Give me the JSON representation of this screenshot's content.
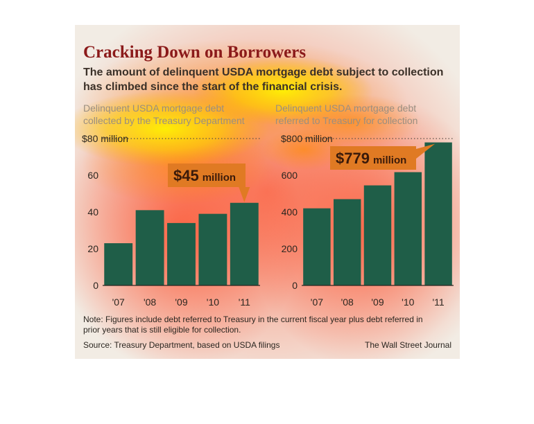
{
  "title": "Cracking Down on Borrowers",
  "subtitle_lines": [
    "The amount of delinquent USDA mortgage debt subject to collection",
    "has climbed since the start of the financial crisis."
  ],
  "note_lines": [
    "Note: Figures include debt referred to Treasury in the current fiscal year plus debt referred in",
    "prior years that is still eligible for collection."
  ],
  "source": "Source: Treasury Department, based on USDA filings",
  "credit": "The Wall Street Journal",
  "colors": {
    "bar": "#1f5e48",
    "callout": "#e07a23",
    "title": "#8b1a1a",
    "background": "#f2ece4"
  },
  "chart_data": [
    {
      "type": "bar",
      "title_lines": [
        "Delinquent USDA mortgage debt",
        "collected by the Treasury Department"
      ],
      "categories": [
        "'07",
        "'08",
        "'09",
        "'10",
        "'11"
      ],
      "values": [
        23,
        41,
        34,
        39,
        45
      ],
      "ylim": [
        0,
        80
      ],
      "yticks": [
        0,
        20,
        40,
        60,
        80
      ],
      "ytick_labels": [
        "0",
        "20",
        "40",
        "60",
        "$80 million"
      ],
      "callout": {
        "value": "$45",
        "unit": "million"
      },
      "grid": false
    },
    {
      "type": "bar",
      "title_lines": [
        "Delinquent USDA mortgage debt",
        "referred to Treasury for collection"
      ],
      "categories": [
        "'07",
        "'08",
        "'09",
        "'10",
        "'11"
      ],
      "values": [
        420,
        470,
        545,
        617,
        779
      ],
      "ylim": [
        0,
        800
      ],
      "yticks": [
        0,
        200,
        400,
        600,
        800
      ],
      "ytick_labels": [
        "0",
        "200",
        "400",
        "600",
        "$800 million"
      ],
      "callout": {
        "value": "$779",
        "unit": "million"
      },
      "grid": false
    }
  ]
}
